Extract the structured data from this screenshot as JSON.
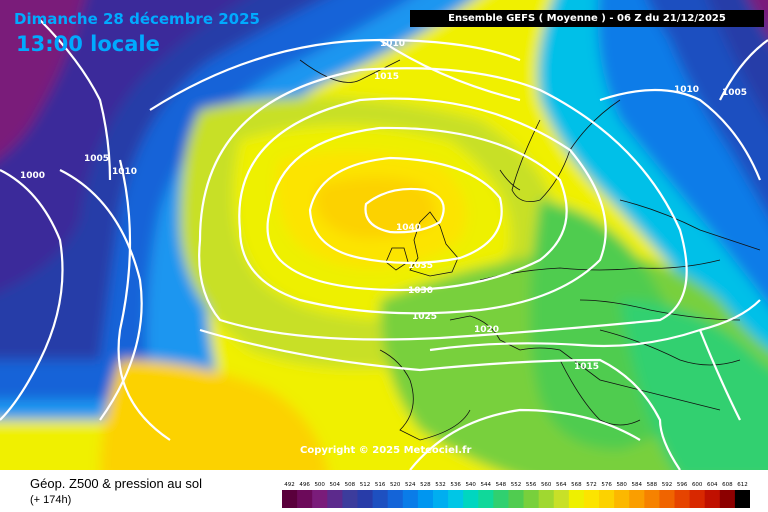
{
  "header": {
    "date_label": "Dimanche 28 décembre 2025",
    "time_label": "13:00 locale",
    "run_label": "Ensemble GEFS  ( Moyenne )  -  06 Z du 21/12/2025"
  },
  "copyright": "Copyright © 2025 Meteociel.fr",
  "footer": {
    "title": "Géop. Z500 & pression au sol",
    "lead": "(+ 174h)"
  },
  "isobar_labels": [
    {
      "value": "1010",
      "id": "1010-north"
    },
    {
      "value": "1015",
      "id": "1015-north"
    },
    {
      "value": "1005",
      "id": "1005-west"
    },
    {
      "value": "1010",
      "id": "1010-west"
    },
    {
      "value": "1000",
      "id": "1000-west"
    },
    {
      "value": "1040",
      "id": "1040-centre"
    },
    {
      "value": "1035",
      "id": "1035"
    },
    {
      "value": "1030",
      "id": "1030"
    },
    {
      "value": "1025",
      "id": "1025"
    },
    {
      "value": "1020",
      "id": "1020"
    },
    {
      "value": "1015",
      "id": "1015-south"
    },
    {
      "value": "1010",
      "id": "1010-east"
    },
    {
      "value": "1005",
      "id": "1005-east"
    }
  ],
  "legend": {
    "values": [
      "492",
      "496",
      "500",
      "504",
      "508",
      "512",
      "516",
      "520",
      "524",
      "528",
      "532",
      "536",
      "540",
      "544",
      "548",
      "552",
      "556",
      "560",
      "564",
      "568",
      "572",
      "576",
      "580",
      "584",
      "588",
      "592",
      "596",
      "600",
      "604",
      "608",
      "612"
    ],
    "colors": [
      "#5a003c",
      "#6c0a5a",
      "#7a1c7a",
      "#5c2a8c",
      "#3c3c9c",
      "#283ca8",
      "#1e50c0",
      "#1464d8",
      "#0a7ce8",
      "#0096f0",
      "#00aef0",
      "#00c6e6",
      "#00d6c0",
      "#10d89a",
      "#30d070",
      "#50cc50",
      "#78d03c",
      "#a0d830",
      "#c8e028",
      "#eef000",
      "#fce400",
      "#fcd200",
      "#fcb800",
      "#fa9e00",
      "#f68200",
      "#f06400",
      "#e64400",
      "#d82800",
      "#c01000",
      "#8c0000",
      "#000000"
    ]
  }
}
